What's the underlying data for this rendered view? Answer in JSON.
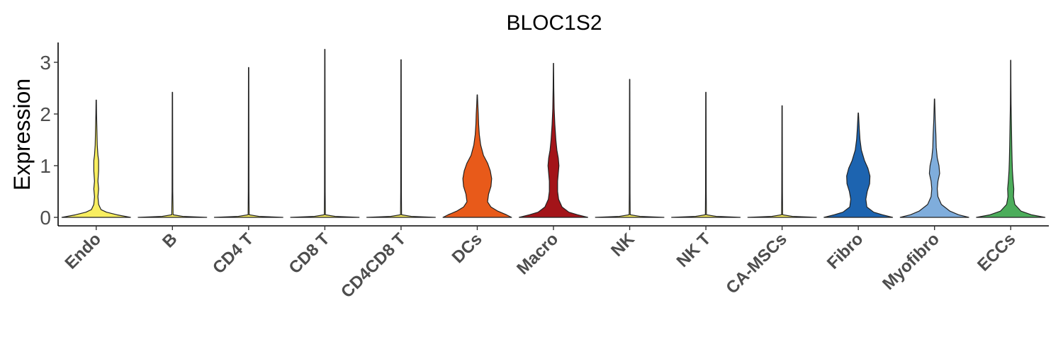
{
  "chart_data": {
    "type": "violin",
    "title": "BLOC1S2",
    "ylabel": "Expression",
    "xlabel": "",
    "ylim": [
      -0.15,
      3.4
    ],
    "yticks": [
      0,
      1,
      2,
      3
    ],
    "grid": false,
    "legend": "none",
    "categories": [
      {
        "name": "Endo",
        "max": 2.27,
        "color": "#F8EE60",
        "profile": [
          [
            0,
            1.0
          ],
          [
            0.05,
            0.6
          ],
          [
            0.1,
            0.3
          ],
          [
            0.15,
            0.14
          ],
          [
            0.25,
            0.07
          ],
          [
            0.4,
            0.05
          ],
          [
            0.55,
            0.07
          ],
          [
            0.7,
            0.05
          ],
          [
            0.9,
            0.07
          ],
          [
            1.1,
            0.07
          ],
          [
            1.2,
            0.05
          ],
          [
            1.4,
            0.03
          ],
          [
            1.7,
            0.02
          ],
          [
            2.0,
            0.01
          ],
          [
            2.27,
            0.005
          ]
        ]
      },
      {
        "name": "B",
        "max": 2.42,
        "color": "#F8EE60",
        "profile": [
          [
            0,
            1.0
          ],
          [
            0.02,
            0.3
          ],
          [
            0.05,
            0.02
          ],
          [
            0.5,
            0.01
          ],
          [
            2.42,
            0.005
          ]
        ]
      },
      {
        "name": "CD4 T",
        "max": 2.9,
        "color": "#F8EE60",
        "profile": [
          [
            0,
            1.0
          ],
          [
            0.02,
            0.3
          ],
          [
            0.05,
            0.015
          ],
          [
            0.5,
            0.01
          ],
          [
            2.9,
            0.005
          ]
        ]
      },
      {
        "name": "CD8 T",
        "max": 3.25,
        "color": "#F8EE60",
        "profile": [
          [
            0,
            1.0
          ],
          [
            0.02,
            0.3
          ],
          [
            0.05,
            0.015
          ],
          [
            0.5,
            0.01
          ],
          [
            3.25,
            0.005
          ]
        ]
      },
      {
        "name": "CD4CD8 T",
        "max": 3.05,
        "color": "#F8EE60",
        "profile": [
          [
            0,
            1.0
          ],
          [
            0.02,
            0.3
          ],
          [
            0.05,
            0.015
          ],
          [
            0.5,
            0.01
          ],
          [
            3.05,
            0.005
          ]
        ]
      },
      {
        "name": "DCs",
        "max": 2.37,
        "color": "#E85A1A",
        "profile": [
          [
            0,
            1.0
          ],
          [
            0.05,
            0.85
          ],
          [
            0.12,
            0.6
          ],
          [
            0.2,
            0.4
          ],
          [
            0.3,
            0.3
          ],
          [
            0.45,
            0.33
          ],
          [
            0.6,
            0.4
          ],
          [
            0.75,
            0.42
          ],
          [
            0.9,
            0.38
          ],
          [
            1.05,
            0.3
          ],
          [
            1.2,
            0.18
          ],
          [
            1.4,
            0.1
          ],
          [
            1.6,
            0.06
          ],
          [
            1.8,
            0.04
          ],
          [
            2.0,
            0.03
          ],
          [
            2.2,
            0.015
          ],
          [
            2.37,
            0.005
          ]
        ]
      },
      {
        "name": "Macro",
        "max": 2.98,
        "color": "#A31419",
        "profile": [
          [
            0,
            1.0
          ],
          [
            0.05,
            0.7
          ],
          [
            0.1,
            0.45
          ],
          [
            0.2,
            0.25
          ],
          [
            0.35,
            0.15
          ],
          [
            0.5,
            0.12
          ],
          [
            0.7,
            0.12
          ],
          [
            0.85,
            0.14
          ],
          [
            1.0,
            0.16
          ],
          [
            1.15,
            0.14
          ],
          [
            1.3,
            0.1
          ],
          [
            1.5,
            0.07
          ],
          [
            1.8,
            0.04
          ],
          [
            2.1,
            0.02
          ],
          [
            2.5,
            0.01
          ],
          [
            2.98,
            0.004
          ]
        ]
      },
      {
        "name": "NK",
        "max": 2.67,
        "color": "#F8EE60",
        "profile": [
          [
            0,
            1.0
          ],
          [
            0.02,
            0.3
          ],
          [
            0.05,
            0.015
          ],
          [
            0.5,
            0.01
          ],
          [
            2.67,
            0.005
          ]
        ]
      },
      {
        "name": "NK T",
        "max": 2.42,
        "color": "#F8EE60",
        "profile": [
          [
            0,
            1.0
          ],
          [
            0.02,
            0.3
          ],
          [
            0.05,
            0.015
          ],
          [
            0.5,
            0.01
          ],
          [
            2.42,
            0.005
          ]
        ]
      },
      {
        "name": "CA-MSCs",
        "max": 2.16,
        "color": "#F8EE60",
        "profile": [
          [
            0,
            1.0
          ],
          [
            0.02,
            0.3
          ],
          [
            0.05,
            0.015
          ],
          [
            0.5,
            0.01
          ],
          [
            2.16,
            0.005
          ]
        ]
      },
      {
        "name": "Fibro",
        "max": 2.02,
        "color": "#1D64B0",
        "profile": [
          [
            0,
            1.0
          ],
          [
            0.05,
            0.7
          ],
          [
            0.1,
            0.45
          ],
          [
            0.2,
            0.25
          ],
          [
            0.35,
            0.22
          ],
          [
            0.5,
            0.26
          ],
          [
            0.65,
            0.33
          ],
          [
            0.8,
            0.34
          ],
          [
            0.95,
            0.28
          ],
          [
            1.1,
            0.18
          ],
          [
            1.3,
            0.09
          ],
          [
            1.5,
            0.05
          ],
          [
            1.7,
            0.03
          ],
          [
            2.02,
            0.005
          ]
        ]
      },
      {
        "name": "Myofibro",
        "max": 2.29,
        "color": "#7FADDC",
        "profile": [
          [
            0,
            1.0
          ],
          [
            0.05,
            0.7
          ],
          [
            0.12,
            0.45
          ],
          [
            0.25,
            0.2
          ],
          [
            0.4,
            0.1
          ],
          [
            0.55,
            0.08
          ],
          [
            0.7,
            0.1
          ],
          [
            0.85,
            0.15
          ],
          [
            1.0,
            0.13
          ],
          [
            1.15,
            0.08
          ],
          [
            1.35,
            0.05
          ],
          [
            1.6,
            0.04
          ],
          [
            1.9,
            0.02
          ],
          [
            2.29,
            0.005
          ]
        ]
      },
      {
        "name": "ECCs",
        "max": 3.04,
        "color": "#4CAD5B",
        "profile": [
          [
            0,
            1.0
          ],
          [
            0.05,
            0.6
          ],
          [
            0.12,
            0.3
          ],
          [
            0.25,
            0.12
          ],
          [
            0.4,
            0.08
          ],
          [
            0.55,
            0.09
          ],
          [
            0.7,
            0.07
          ],
          [
            0.9,
            0.05
          ],
          [
            1.1,
            0.04
          ],
          [
            1.4,
            0.03
          ],
          [
            1.8,
            0.02
          ],
          [
            2.2,
            0.01
          ],
          [
            2.6,
            0.006
          ],
          [
            3.04,
            0.004
          ]
        ]
      }
    ]
  }
}
